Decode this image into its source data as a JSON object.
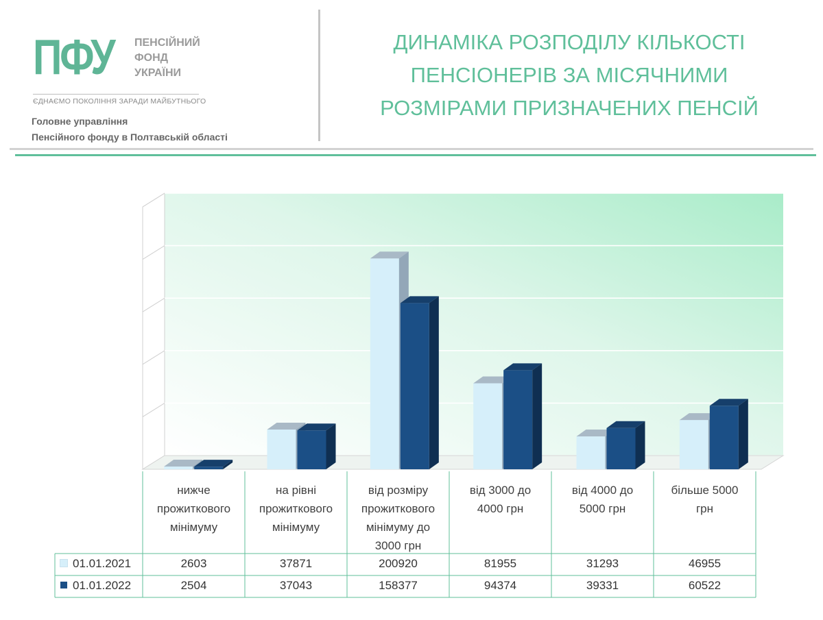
{
  "header": {
    "logo_mark": "ПФУ",
    "logo_words": [
      "ПЕНСІЙНИЙ",
      "ФОНД",
      "УКРАЇНИ"
    ],
    "slogan": "ЄДНАЄМО ПОКОЛІННЯ ЗАРАДИ МАЙБУТНЬОГО",
    "org_line1": "Головне управління",
    "org_line2": "Пенсійного фонду в Полтавській області",
    "title_lines": [
      "ДИНАМІКА РОЗПОДІЛУ КІЛЬКОСТІ",
      "ПЕНСІОНЕРІВ ЗА МІСЯЧНИМИ",
      "РОЗМІРАМИ ПРИЗНАЧЕНИХ ПЕНСІЙ"
    ]
  },
  "colors": {
    "brand_green": "#5fbf9a",
    "series_2021": "#d6effa",
    "series_2022": "#1b4f86"
  },
  "chart_data": {
    "type": "bar",
    "categories": [
      "нижче прожиткового мінімуму",
      "на рівні прожиткового мінімуму",
      "від розміру прожиткового мінімуму до 3000 грн",
      "від 3000 до 4000 грн",
      "від 4000 до 5000 грн",
      "більше 5000 грн"
    ],
    "series": [
      {
        "name": "01.01.2021",
        "values": [
          2603,
          37871,
          200920,
          81955,
          31293,
          46955
        ]
      },
      {
        "name": "01.01.2022",
        "values": [
          2504,
          37043,
          158377,
          94374,
          39331,
          60522
        ]
      }
    ],
    "value_labels": [
      [
        "2603",
        "37871",
        "200920",
        "81955",
        "31293",
        "46955"
      ],
      [
        "2504",
        "37043",
        "158377",
        "94374",
        "39331",
        "60522"
      ]
    ],
    "ylim": [
      0,
      250000
    ],
    "grid": true,
    "legend": "data-table"
  }
}
